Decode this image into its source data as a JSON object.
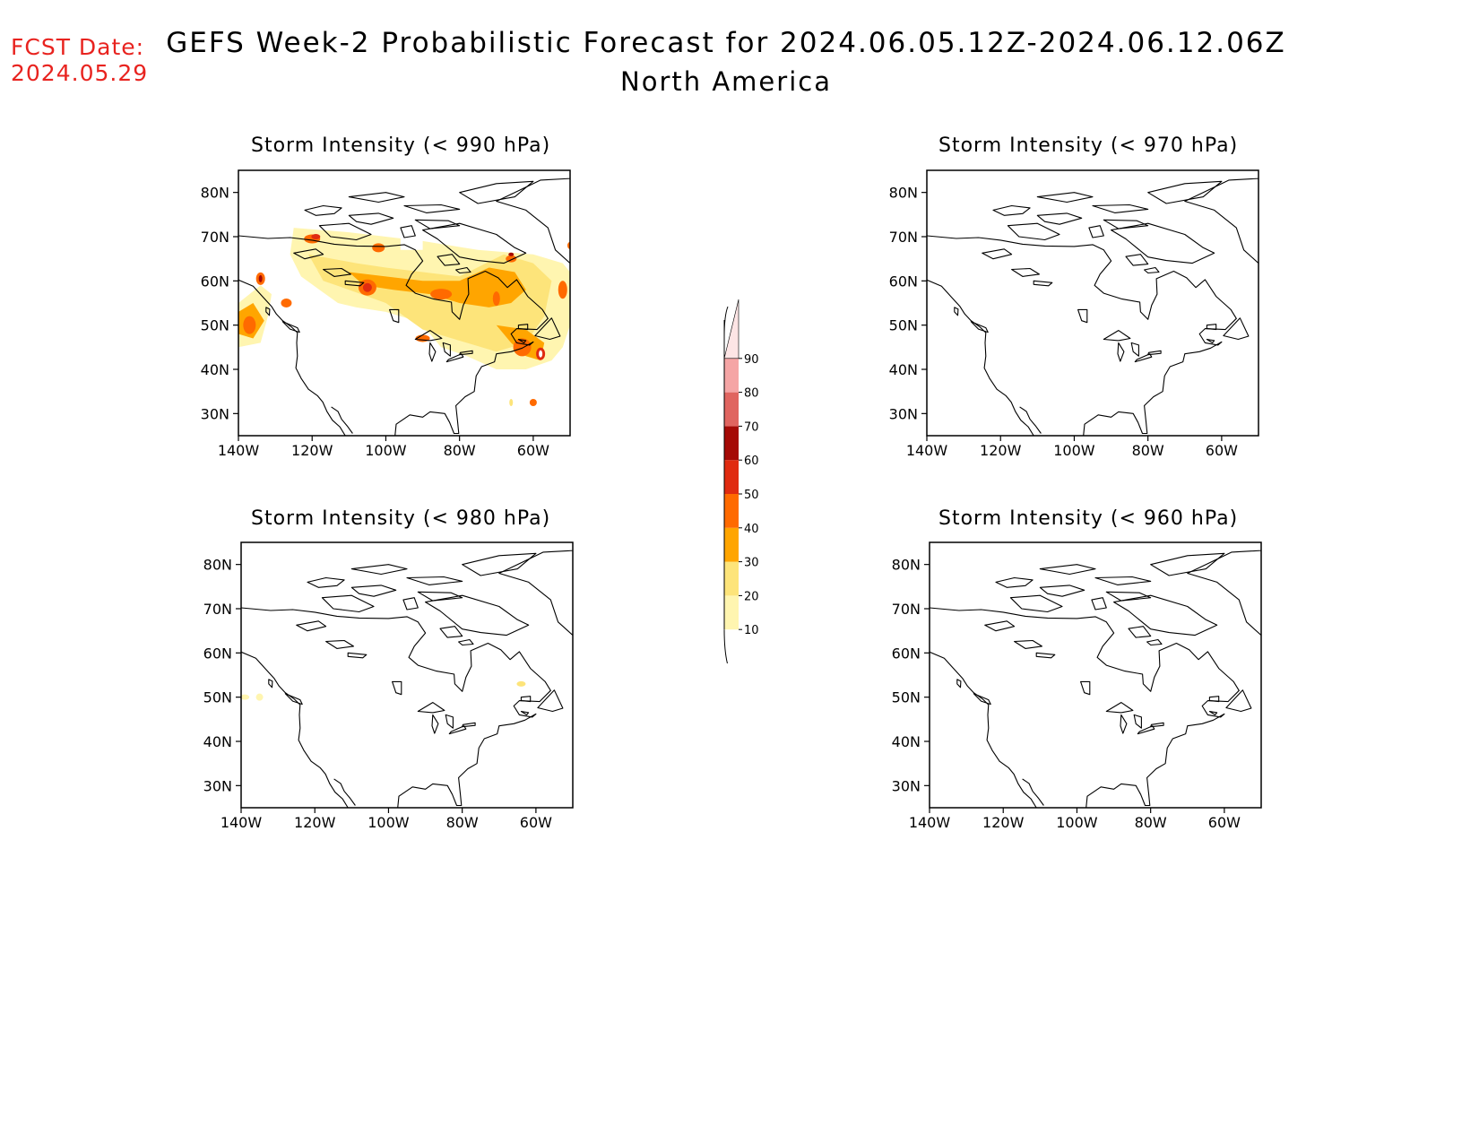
{
  "header": {
    "fcst_label": "FCST Date:",
    "fcst_date": "2024.05.29",
    "title": "GEFS Week-2 Probabilistic Forecast for 2024.06.05.12Z-2024.06.12.06Z",
    "subtitle": "North America"
  },
  "axes": {
    "lat_ticks": [
      "80N",
      "70N",
      "60N",
      "50N",
      "40N",
      "30N"
    ],
    "lon_ticks": [
      "140W",
      "120W",
      "100W",
      "80W",
      "60W"
    ]
  },
  "panels": [
    {
      "id": "p990",
      "title": "Storm Intensity (< 990 hPa)"
    },
    {
      "id": "p970",
      "title": "Storm Intensity (< 970 hPa)"
    },
    {
      "id": "p980",
      "title": "Storm Intensity (< 980 hPa)"
    },
    {
      "id": "p960",
      "title": "Storm Intensity (< 960 hPa)"
    }
  ],
  "colorbar": {
    "levels": [
      "10",
      "20",
      "30",
      "40",
      "50",
      "60",
      "70",
      "80",
      "90"
    ],
    "colors": [
      "#fff5b0",
      "#fde47a",
      "#ffa500",
      "#ff6a00",
      "#e02b10",
      "#a50a06",
      "#e06560",
      "#f5a5a5",
      "#fde5e5"
    ]
  }
}
